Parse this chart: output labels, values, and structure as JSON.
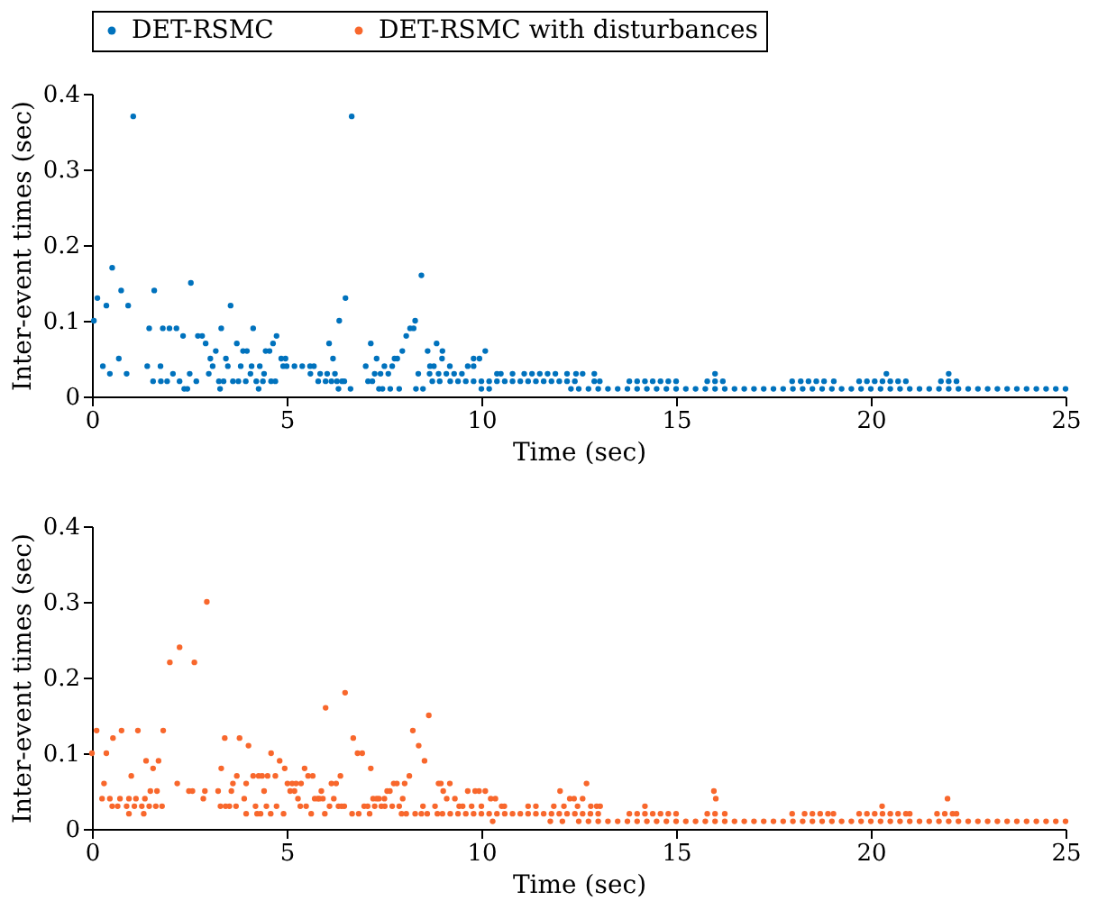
{
  "chart_data": [
    {
      "type": "scatter",
      "xlabel": "Time (sec)",
      "ylabel": "Inter-event times (sec)",
      "xlim": [
        0,
        25
      ],
      "xticks": [
        0,
        5,
        10,
        15,
        20,
        25
      ],
      "ylim": [
        0,
        0.4
      ],
      "yticks": [
        0,
        0.1,
        0.2,
        0.3,
        0.4
      ],
      "legend": "top",
      "marker": "circle",
      "series": [
        {
          "name": "DET-RSMC",
          "color": "#0072bd",
          "x": [
            1.06,
            6.67,
            0.52,
            8.46,
            2.54,
            0.75,
            1.6,
            0.14,
            6.51,
            0.37,
            0.93,
            3.56,
            0.05,
            6.35,
            8.3,
            1.47,
            1.82,
            1.99,
            2.17,
            3.32,
            4.14,
            8.17,
            8.26,
            2.34,
            2.72,
            2.83,
            4.74,
            8.07,
            2.92,
            3.72,
            4.65,
            6.09,
            7.16,
            8.85,
            3.18,
            3.88,
            3.98,
            4.46,
            4.56,
            7.97,
            8.62,
            9.0,
            10.1,
            0.69,
            3.04,
            3.44,
            4.86,
            4.97,
            6.19,
            7.31,
            7.77,
            7.84,
            8.99,
            9.8,
            9.95,
            0.28,
            1.42,
            1.76,
            3.1,
            3.49,
            3.82,
            4.1,
            4.31,
            4.91,
            5.0,
            5.2,
            5.4,
            5.6,
            5.7,
            7.03,
            7.51,
            7.71,
            8.78,
            8.68,
            9.19,
            9.65,
            9.8,
            0.46,
            0.89,
            2.08,
            2.51,
            3.0,
            4.07,
            4.42,
            5.61,
            5.86,
            6.04,
            6.24,
            7.26,
            7.41,
            7.61,
            8.38,
            8.67,
            8.9,
            9.1,
            9.3,
            9.5,
            10.4,
            10.5,
            10.8,
            11.1,
            11.3,
            11.5,
            11.7,
            11.9,
            12.2,
            12.43,
            12.6,
            12.9,
            16.0,
            20.4,
            22.0,
            1.57,
            1.77,
            1.93,
            2.25,
            2.68,
            3.26,
            3.38,
            3.62,
            3.76,
            3.95,
            4.22,
            4.39,
            4.6,
            4.71,
            5.81,
            6.0,
            6.15,
            6.29,
            6.42,
            6.48,
            7.09,
            7.2,
            8.74,
            8.93,
            9.2,
            9.4,
            9.6,
            9.8,
            10.0,
            10.2,
            10.4,
            10.6,
            10.8,
            11.0,
            11.2,
            11.4,
            11.6,
            11.8,
            12.0,
            12.2,
            12.4,
            12.9,
            13.04,
            13.8,
            14.0,
            14.2,
            14.4,
            14.6,
            14.8,
            15.0,
            15.8,
            16.0,
            16.2,
            17.98,
            18.2,
            18.4,
            18.6,
            18.8,
            19.05,
            19.7,
            19.9,
            20.1,
            20.3,
            20.5,
            20.7,
            20.9,
            21.8,
            22.0,
            22.2,
            2.37,
            2.45,
            3.29,
            4.28,
            6.33,
            6.64,
            7.37,
            7.46,
            7.66,
            7.89,
            8.32,
            8.5,
            10.0,
            10.2,
            12.3,
            12.5,
            12.75,
            13,
            13.25,
            13.5,
            13.75,
            14,
            14.25,
            14.5,
            14.75,
            15,
            15.25,
            15.5,
            15.75,
            16,
            16.25,
            16.5,
            16.75,
            17,
            17.25,
            17.5,
            17.75,
            18,
            18.25,
            18.5,
            18.75,
            19,
            19.25,
            19.5,
            19.75,
            20,
            20.25,
            20.5,
            20.75,
            21,
            21.25,
            21.5,
            21.75,
            22,
            22.25,
            22.5,
            22.75,
            23,
            23.25,
            23.5,
            23.75,
            24,
            24.25,
            24.5,
            24.75,
            25
          ],
          "values": [
            0.37,
            0.37,
            0.17,
            0.16,
            0.15,
            0.14,
            0.14,
            0.13,
            0.13,
            0.12,
            0.12,
            0.12,
            0.1,
            0.1,
            0.1,
            0.09,
            0.09,
            0.09,
            0.09,
            0.09,
            0.09,
            0.09,
            0.09,
            0.08,
            0.08,
            0.08,
            0.08,
            0.08,
            0.07,
            0.07,
            0.07,
            0.07,
            0.07,
            0.07,
            0.06,
            0.06,
            0.06,
            0.06,
            0.06,
            0.06,
            0.06,
            0.06,
            0.06,
            0.05,
            0.05,
            0.05,
            0.05,
            0.05,
            0.05,
            0.05,
            0.05,
            0.05,
            0.05,
            0.05,
            0.05,
            0.04,
            0.04,
            0.04,
            0.04,
            0.04,
            0.04,
            0.04,
            0.04,
            0.04,
            0.04,
            0.04,
            0.04,
            0.04,
            0.04,
            0.04,
            0.04,
            0.04,
            0.04,
            0.04,
            0.04,
            0.04,
            0.04,
            0.03,
            0.03,
            0.03,
            0.03,
            0.03,
            0.03,
            0.03,
            0.03,
            0.03,
            0.03,
            0.03,
            0.03,
            0.03,
            0.03,
            0.03,
            0.03,
            0.03,
            0.03,
            0.03,
            0.03,
            0.03,
            0.03,
            0.03,
            0.03,
            0.03,
            0.03,
            0.03,
            0.03,
            0.03,
            0.03,
            0.03,
            0.03,
            0.03,
            0.03,
            0.03,
            0.02,
            0.02,
            0.02,
            0.02,
            0.02,
            0.02,
            0.02,
            0.02,
            0.02,
            0.02,
            0.02,
            0.02,
            0.02,
            0.02,
            0.02,
            0.02,
            0.02,
            0.02,
            0.02,
            0.02,
            0.02,
            0.02,
            0.02,
            0.02,
            0.02,
            0.02,
            0.02,
            0.02,
            0.02,
            0.02,
            0.02,
            0.02,
            0.02,
            0.02,
            0.02,
            0.02,
            0.02,
            0.02,
            0.02,
            0.02,
            0.02,
            0.02,
            0.02,
            0.02,
            0.02,
            0.02,
            0.02,
            0.02,
            0.02,
            0.02,
            0.02,
            0.02,
            0.02,
            0.02,
            0.02,
            0.02,
            0.02,
            0.02,
            0.02,
            0.02,
            0.02,
            0.02,
            0.02,
            0.02,
            0.02,
            0.02,
            0.02,
            0.02,
            0.02,
            0.01,
            0.01,
            0.01,
            0.01,
            0.01,
            0.01,
            0.01,
            0.01,
            0.01,
            0.01,
            0.01,
            0.01,
            0.01,
            0.01,
            0.01,
            0.01,
            0.01,
            0.01,
            0.01,
            0.01,
            0.01,
            0.01,
            0.01,
            0.01,
            0.01,
            0.01,
            0.01,
            0.01,
            0.01,
            0.01,
            0.01,
            0.01,
            0.01,
            0.01,
            0.01,
            0.01,
            0.01,
            0.01,
            0.01,
            0.01,
            0.01,
            0.01,
            0.01,
            0.01,
            0.01,
            0.01,
            0.01,
            0.01,
            0.01,
            0.01,
            0.01,
            0.01,
            0.01,
            0.01,
            0.01,
            0.01,
            0.01,
            0.01,
            0.01,
            0.01,
            0.01,
            0.01,
            0.01,
            0.01,
            0.01,
            0.01
          ]
        }
      ]
    },
    {
      "type": "scatter",
      "xlabel": "Time (sec)",
      "ylabel": "Inter-event times (sec)",
      "xlim": [
        0,
        25
      ],
      "xticks": [
        0,
        5,
        10,
        15,
        20,
        25
      ],
      "ylim": [
        0,
        0.4
      ],
      "yticks": [
        0,
        0.1,
        0.2,
        0.3,
        0.4
      ],
      "legend": "top",
      "marker": "circle",
      "series": [
        {
          "name": "DET-RSMC with disturbances",
          "color": "#f8672c",
          "x": [
            2.95,
            2.25,
            2.0,
            2.63,
            6.5,
            6.0,
            8.65,
            0.12,
            0.76,
            1.18,
            1.83,
            8.24,
            0.54,
            3.41,
            3.79,
            6.71,
            4.02,
            8.39,
            0.0,
            0.37,
            4.6,
            6.82,
            6.94,
            1.39,
            1.71,
            4.82,
            8.54,
            1.57,
            3.32,
            4.95,
            5.46,
            7.16,
            1.01,
            3.72,
            4.14,
            4.28,
            4.37,
            4.51,
            4.71,
            5.55,
            5.67,
            6.38,
            8.15,
            0.31,
            2.19,
            3.62,
            3.96,
            5.02,
            5.14,
            5.24,
            5.37,
            6.15,
            6.27,
            7.75,
            7.83,
            8.03,
            8.9,
            8.96,
            9.19,
            12.7,
            1.5,
            1.67,
            2.49,
            2.58,
            2.9,
            3.24,
            3.58,
            4.42,
            5.09,
            5.2,
            5.89,
            7.58,
            7.65,
            9.02,
            9.65,
            9.84,
            9.94,
            10.1,
            12.02,
            15.97,
            0.26,
            0.46,
            0.72,
            0.95,
            1.13,
            1.36,
            2.86,
            3.91,
            5.29,
            5.72,
            5.8,
            5.84,
            5.93,
            6.21,
            7.22,
            7.31,
            7.37,
            7.51,
            7.98,
            9.11,
            9.32,
            10.24,
            10.36,
            12.27,
            12.38,
            12.6,
            16.02,
            21.97,
            0.52,
            0.66,
            0.89,
            1.09,
            1.28,
            1.47,
            1.64,
            1.8,
            3.3,
            3.43,
            3.53,
            3.7,
            4.2,
            4.48,
            4.74,
            5.35,
            5.5,
            6.1,
            6.33,
            6.41,
            6.48,
            6.99,
            7.08,
            7.26,
            7.43,
            7.52,
            7.71,
            7.89,
            8.5,
            8.81,
            9.43,
            9.52,
            9.75,
            10.0,
            10.52,
            10.59,
            11.2,
            11.4,
            11.86,
            12.12,
            12.47,
            12.81,
            12.96,
            13.05,
            14.2,
            20.29,
            0.95,
            1.33,
            3.96,
            4.24,
            4.33,
            4.59,
            4.92,
            5.63,
            5.98,
            6.68,
            6.85,
            7.13,
            7.95,
            8.07,
            8.3,
            8.46,
            8.61,
            8.87,
            9.0,
            9.2,
            9.4,
            9.6,
            9.8,
            10.0,
            10.2,
            10.4,
            10.6,
            10.8,
            11.0,
            11.2,
            11.4,
            11.6,
            11.8,
            12.0,
            12.2,
            12.4,
            12.6,
            12.8,
            13.0,
            13.8,
            14.0,
            14.2,
            14.4,
            14.6,
            14.8,
            15.0,
            15.8,
            16.0,
            16.25,
            17.98,
            18.3,
            18.5,
            18.7,
            18.9,
            19.04,
            19.7,
            19.9,
            20.1,
            20.3,
            20.5,
            20.7,
            20.9,
            21.0,
            21.7,
            21.9,
            22.1,
            22.2,
            10.29,
            11.77,
            12.08,
            12.5,
            12.75,
            13,
            13.25,
            13.5,
            13.75,
            14,
            14.25,
            14.5,
            14.75,
            15,
            15.25,
            15.5,
            15.75,
            16,
            16.25,
            16.5,
            16.75,
            17,
            17.25,
            17.5,
            17.75,
            18,
            18.25,
            18.5,
            18.75,
            19,
            19.25,
            19.5,
            19.75,
            20,
            20.25,
            20.5,
            20.75,
            21,
            21.25,
            21.5,
            21.75,
            22,
            22.25,
            22.5,
            22.75,
            23,
            23.25,
            23.5,
            23.75,
            24,
            24.25,
            24.5,
            24.75,
            25
          ],
          "values": [
            0.3,
            0.24,
            0.22,
            0.22,
            0.18,
            0.16,
            0.15,
            0.13,
            0.13,
            0.13,
            0.13,
            0.13,
            0.12,
            0.12,
            0.12,
            0.12,
            0.11,
            0.11,
            0.1,
            0.1,
            0.1,
            0.1,
            0.1,
            0.09,
            0.09,
            0.09,
            0.09,
            0.08,
            0.08,
            0.08,
            0.08,
            0.08,
            0.07,
            0.07,
            0.07,
            0.07,
            0.07,
            0.07,
            0.07,
            0.07,
            0.07,
            0.07,
            0.07,
            0.06,
            0.06,
            0.06,
            0.06,
            0.06,
            0.06,
            0.06,
            0.06,
            0.06,
            0.06,
            0.06,
            0.06,
            0.06,
            0.06,
            0.06,
            0.06,
            0.06,
            0.05,
            0.05,
            0.05,
            0.05,
            0.05,
            0.05,
            0.05,
            0.05,
            0.05,
            0.05,
            0.05,
            0.05,
            0.05,
            0.05,
            0.05,
            0.05,
            0.05,
            0.05,
            0.05,
            0.05,
            0.04,
            0.04,
            0.04,
            0.04,
            0.04,
            0.04,
            0.04,
            0.04,
            0.04,
            0.04,
            0.04,
            0.04,
            0.04,
            0.04,
            0.04,
            0.04,
            0.04,
            0.04,
            0.04,
            0.04,
            0.04,
            0.04,
            0.04,
            0.04,
            0.04,
            0.04,
            0.04,
            0.04,
            0.03,
            0.03,
            0.03,
            0.03,
            0.03,
            0.03,
            0.03,
            0.03,
            0.03,
            0.03,
            0.03,
            0.03,
            0.03,
            0.03,
            0.03,
            0.03,
            0.03,
            0.03,
            0.03,
            0.03,
            0.03,
            0.03,
            0.03,
            0.03,
            0.03,
            0.03,
            0.03,
            0.03,
            0.03,
            0.03,
            0.03,
            0.03,
            0.03,
            0.03,
            0.03,
            0.03,
            0.03,
            0.03,
            0.03,
            0.03,
            0.03,
            0.03,
            0.03,
            0.03,
            0.03,
            0.03,
            0.02,
            0.02,
            0.02,
            0.02,
            0.02,
            0.02,
            0.02,
            0.02,
            0.02,
            0.02,
            0.02,
            0.02,
            0.02,
            0.02,
            0.02,
            0.02,
            0.02,
            0.02,
            0.02,
            0.02,
            0.02,
            0.02,
            0.02,
            0.02,
            0.02,
            0.02,
            0.02,
            0.02,
            0.02,
            0.02,
            0.02,
            0.02,
            0.02,
            0.02,
            0.02,
            0.02,
            0.02,
            0.02,
            0.02,
            0.02,
            0.02,
            0.02,
            0.02,
            0.02,
            0.02,
            0.02,
            0.02,
            0.02,
            0.02,
            0.02,
            0.02,
            0.02,
            0.02,
            0.02,
            0.02,
            0.02,
            0.02,
            0.02,
            0.02,
            0.02,
            0.02,
            0.02,
            0.02,
            0.02,
            0.02,
            0.02,
            0.02,
            0.01,
            0.01,
            0.01,
            0.01,
            0.01,
            0.01,
            0.01,
            0.01,
            0.01,
            0.01,
            0.01,
            0.01,
            0.01,
            0.01,
            0.01,
            0.01,
            0.01,
            0.01,
            0.01,
            0.01,
            0.01,
            0.01,
            0.01,
            0.01,
            0.01,
            0.01,
            0.01,
            0.01,
            0.01,
            0.01,
            0.01,
            0.01,
            0.01,
            0.01,
            0.01,
            0.01,
            0.01,
            0.01,
            0.01,
            0.01,
            0.01,
            0.01,
            0.01,
            0.01,
            0.01,
            0.01,
            0.01,
            0.01,
            0.01,
            0.01,
            0.01,
            0.01,
            0.01,
            0.01
          ]
        }
      ]
    }
  ]
}
